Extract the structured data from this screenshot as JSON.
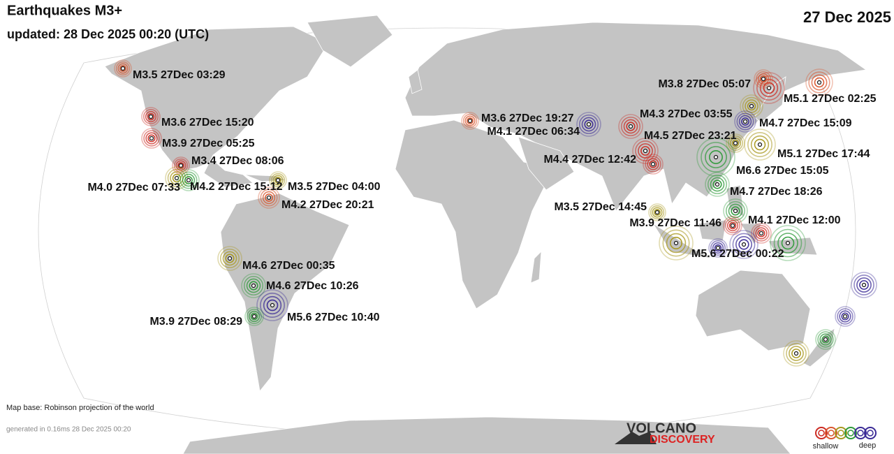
{
  "header": {
    "title": "Earthquakes M3+",
    "updated": "updated: 28 Dec 2025 00:20 (UTC)",
    "date": "27 Dec 2025"
  },
  "quakes": [
    {
      "label": "M3.5 27Dec 03:29"
    },
    {
      "label": "M3.6 27Dec 15:20"
    },
    {
      "label": "M3.9 27Dec 05:25"
    },
    {
      "label": "M3.4 27Dec 08:06"
    },
    {
      "label": "M4.0 27Dec 07:33"
    },
    {
      "label": "M4.2 27Dec 15:12"
    },
    {
      "label": "M3.5 27Dec 04:00"
    },
    {
      "label": "M4.2 27Dec 20:21"
    },
    {
      "label": "M4.6 27Dec 00:35"
    },
    {
      "label": "M4.6 27Dec 10:26"
    },
    {
      "label": "M5.6 27Dec 10:40"
    },
    {
      "label": "M3.9 27Dec 08:29"
    },
    {
      "label": "M3.6 27Dec 19:27"
    },
    {
      "label": "M4.1 27Dec 06:34"
    },
    {
      "label": "M4.3 27Dec 03:55"
    },
    {
      "label": "M4.5 27Dec 23:21"
    },
    {
      "label": "M4.4 27Dec 12:42"
    },
    {
      "label": "M3.8 27Dec 05:07"
    },
    {
      "label": "M5.1 27Dec 02:25"
    },
    {
      "label": "M4.7 27Dec 15:09"
    },
    {
      "label": "M5.1 27Dec 17:44"
    },
    {
      "label": "M6.6 27Dec 15:05"
    },
    {
      "label": "M4.7 27Dec 18:26"
    },
    {
      "label": "M3.5 27Dec 14:45"
    },
    {
      "label": "M3.9 27Dec 11:46"
    },
    {
      "label": "M4.1 27Dec 12:00"
    },
    {
      "label": "M5.6 27Dec 00:22"
    }
  ],
  "footer": {
    "map_base": "Map base: Robinson projection of the world",
    "generated": "generated in 0.16ms 28 Dec 2025 00:20"
  },
  "logo": {
    "line1": "VOLCANO",
    "line2": "DISCOVERY"
  },
  "legend": {
    "shallow": "shallow",
    "deep": "deep"
  }
}
